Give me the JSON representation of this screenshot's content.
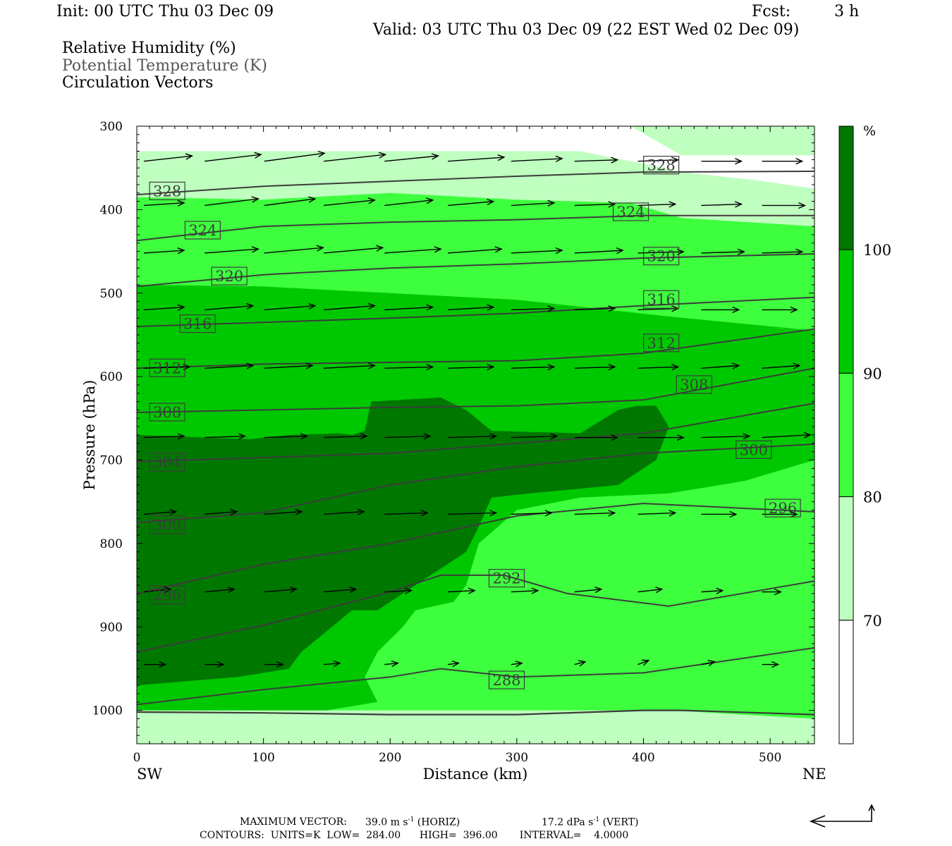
{
  "header": {
    "init": "Init: 00 UTC Thu 03 Dec 09",
    "fcst_label": "Fcst:",
    "fcst_value": "3 h",
    "valid": "Valid: 03 UTC Thu 03 Dec 09 (22 EST Wed 02 Dec 09)",
    "fields": [
      "Relative Humidity (%)",
      "Potential Temperature (K)",
      "Circulation Vectors"
    ]
  },
  "footer": {
    "max_vector_label": "MAXIMUM VECTOR:",
    "max_vector_horiz": "39.0 m s",
    "max_vector_horiz_unit": "(HORIZ)",
    "max_vector_vert": "17.2 dPa s",
    "max_vector_vert_unit": "(VERT)",
    "exponent": "-1",
    "contours": "CONTOURS:  UNITS=K  LOW=  284.00      HIGH=  396.00       INTERVAL=    4.0000"
  },
  "colors": {
    "rh_70": "#bfffbf",
    "rh_80": "#3dff3d",
    "rh_90": "#00c800",
    "rh_100": "#007800",
    "theta_line": "#3c3c3c",
    "vector": "#000000"
  },
  "chart_data": {
    "type": "cross-section",
    "xlabel": "Distance (km)",
    "ylabel": "Pressure (hPa)",
    "xlim": [
      0,
      535
    ],
    "ylim": [
      1040,
      300
    ],
    "x_ticks": [
      0,
      100,
      200,
      300,
      400,
      500
    ],
    "y_ticks": [
      300,
      400,
      500,
      600,
      700,
      800,
      900,
      1000
    ],
    "x_end_labels": {
      "left": "SW",
      "right": "NE"
    },
    "colorbar": {
      "unit": "%",
      "levels": [
        70,
        80,
        90,
        100
      ]
    },
    "rh_fields": [
      {
        "level": 70,
        "polygon": [
          [
            0,
            300
          ],
          [
            535,
            300
          ],
          [
            535,
            335
          ],
          [
            430,
            335
          ],
          [
            390,
            300
          ],
          [
            0,
            300
          ],
          [
            0,
            1040
          ],
          [
            535,
            1040
          ],
          [
            535,
            375
          ],
          [
            490,
            365
          ],
          [
            430,
            355
          ],
          [
            400,
            345
          ],
          [
            350,
            330
          ],
          [
            0,
            330
          ]
        ]
      },
      {
        "level": 80,
        "polygon": [
          [
            0,
            385
          ],
          [
            100,
            388
          ],
          [
            200,
            380
          ],
          [
            300,
            388
          ],
          [
            390,
            392
          ],
          [
            430,
            410
          ],
          [
            535,
            420
          ],
          [
            535,
            1010
          ],
          [
            420,
            1000
          ],
          [
            240,
            1000
          ],
          [
            0,
            1000
          ],
          [
            0,
            385
          ]
        ]
      },
      {
        "level": 90,
        "polygon": [
          [
            0,
            490
          ],
          [
            100,
            492
          ],
          [
            200,
            500
          ],
          [
            300,
            508
          ],
          [
            420,
            528
          ],
          [
            535,
            545
          ],
          [
            535,
            700
          ],
          [
            480,
            725
          ],
          [
            420,
            740
          ],
          [
            350,
            745
          ],
          [
            300,
            760
          ],
          [
            270,
            800
          ],
          [
            260,
            850
          ],
          [
            250,
            870
          ],
          [
            220,
            880
          ],
          [
            210,
            900
          ],
          [
            190,
            930
          ],
          [
            180,
            960
          ],
          [
            190,
            990
          ],
          [
            150,
            1000
          ],
          [
            0,
            1000
          ],
          [
            0,
            490
          ]
        ]
      },
      {
        "level": 100,
        "polygon": [
          [
            0,
            670
          ],
          [
            90,
            675
          ],
          [
            120,
            670
          ],
          [
            160,
            668
          ],
          [
            170,
            670
          ],
          [
            180,
            665
          ],
          [
            185,
            630
          ],
          [
            240,
            625
          ],
          [
            260,
            640
          ],
          [
            280,
            665
          ],
          [
            350,
            668
          ],
          [
            380,
            640
          ],
          [
            395,
            635
          ],
          [
            410,
            635
          ],
          [
            420,
            660
          ],
          [
            410,
            700
          ],
          [
            380,
            730
          ],
          [
            310,
            740
          ],
          [
            280,
            745
          ],
          [
            270,
            780
          ],
          [
            260,
            810
          ],
          [
            240,
            830
          ],
          [
            210,
            860
          ],
          [
            190,
            880
          ],
          [
            170,
            880
          ],
          [
            130,
            930
          ],
          [
            120,
            950
          ],
          [
            80,
            960
          ],
          [
            0,
            970
          ],
          [
            0,
            670
          ]
        ]
      }
    ],
    "theta_contours": [
      {
        "value": 328,
        "points": [
          [
            0,
            382
          ],
          [
            100,
            372
          ],
          [
            200,
            366
          ],
          [
            300,
            360
          ],
          [
            400,
            355
          ],
          [
            535,
            354
          ]
        ]
      },
      {
        "value": 324,
        "points": [
          [
            0,
            437
          ],
          [
            100,
            420
          ],
          [
            200,
            415
          ],
          [
            300,
            412
          ],
          [
            400,
            407
          ],
          [
            535,
            407
          ]
        ]
      },
      {
        "value": 320,
        "points": [
          [
            0,
            492
          ],
          [
            100,
            478
          ],
          [
            200,
            470
          ],
          [
            300,
            465
          ],
          [
            400,
            458
          ],
          [
            535,
            453
          ]
        ]
      },
      {
        "value": 316,
        "points": [
          [
            0,
            540
          ],
          [
            100,
            535
          ],
          [
            200,
            530
          ],
          [
            300,
            524
          ],
          [
            400,
            515
          ],
          [
            535,
            505
          ]
        ]
      },
      {
        "value": 312,
        "points": [
          [
            0,
            590
          ],
          [
            100,
            585
          ],
          [
            200,
            583
          ],
          [
            300,
            581
          ],
          [
            400,
            572
          ],
          [
            535,
            543
          ]
        ]
      },
      {
        "value": 308,
        "points": [
          [
            0,
            643
          ],
          [
            100,
            640
          ],
          [
            200,
            637
          ],
          [
            300,
            635
          ],
          [
            400,
            628
          ],
          [
            535,
            590
          ]
        ]
      },
      {
        "value": 304,
        "points": [
          [
            0,
            702
          ],
          [
            100,
            697
          ],
          [
            200,
            692
          ],
          [
            300,
            680
          ],
          [
            400,
            668
          ],
          [
            535,
            632
          ]
        ]
      },
      {
        "value": 300,
        "points": [
          [
            0,
            775
          ],
          [
            100,
            763
          ],
          [
            200,
            730
          ],
          [
            300,
            708
          ],
          [
            400,
            692
          ],
          [
            535,
            681
          ]
        ]
      },
      {
        "value": 296,
        "points": [
          [
            0,
            860
          ],
          [
            100,
            825
          ],
          [
            200,
            800
          ],
          [
            300,
            767
          ],
          [
            400,
            752
          ],
          [
            535,
            762
          ]
        ]
      },
      {
        "value": 292,
        "points": [
          [
            0,
            930
          ],
          [
            100,
            898
          ],
          [
            200,
            858
          ],
          [
            240,
            838
          ],
          [
            290,
            838
          ],
          [
            340,
            860
          ],
          [
            420,
            875
          ],
          [
            535,
            845
          ]
        ]
      },
      {
        "value": 288,
        "points": [
          [
            0,
            993
          ],
          [
            100,
            975
          ],
          [
            200,
            960
          ],
          [
            240,
            950
          ],
          [
            300,
            960
          ],
          [
            400,
            955
          ],
          [
            535,
            925
          ]
        ]
      },
      {
        "value": 284,
        "points": [
          [
            0,
            1002
          ],
          [
            100,
            1003
          ],
          [
            200,
            1005
          ],
          [
            300,
            1005
          ],
          [
            400,
            1000
          ],
          [
            430,
            1000
          ],
          [
            535,
            1005
          ]
        ]
      }
    ],
    "theta_labels": [
      {
        "text": "328",
        "x": 24,
        "p": 378
      },
      {
        "text": "328",
        "x": 414,
        "p": 347
      },
      {
        "text": "324",
        "x": 52,
        "p": 425
      },
      {
        "text": "324",
        "x": 390,
        "p": 403
      },
      {
        "text": "320",
        "x": 73,
        "p": 480
      },
      {
        "text": "320",
        "x": 414,
        "p": 456
      },
      {
        "text": "316",
        "x": 48,
        "p": 537
      },
      {
        "text": "316",
        "x": 414,
        "p": 508
      },
      {
        "text": "312",
        "x": 24,
        "p": 590
      },
      {
        "text": "312",
        "x": 414,
        "p": 560
      },
      {
        "text": "308",
        "x": 24,
        "p": 643
      },
      {
        "text": "308",
        "x": 440,
        "p": 610
      },
      {
        "text": "304",
        "x": 24,
        "p": 703
      },
      {
        "text": "300",
        "x": 24,
        "p": 778
      },
      {
        "text": "300",
        "x": 487,
        "p": 688
      },
      {
        "text": "296",
        "x": 24,
        "p": 862
      },
      {
        "text": "296",
        "x": 510,
        "p": 758
      },
      {
        "text": "292",
        "x": 292,
        "p": 842
      },
      {
        "text": "288",
        "x": 292,
        "p": 964
      }
    ],
    "vector_rows": [
      {
        "p": 342,
        "x": [
          0,
          48,
          95,
          142,
          190,
          240,
          290,
          340,
          390,
          440,
          488,
          535
        ],
        "u": [
          36,
          42,
          45,
          46,
          40,
          42,
          38,
          32,
          30,
          30,
          30,
          32
        ],
        "w": [
          -4,
          -5,
          -6,
          -5,
          -4,
          -3,
          -2,
          -1,
          -1,
          0,
          0,
          0
        ]
      },
      {
        "p": 395,
        "x": [
          0,
          48,
          95,
          142,
          190,
          240,
          290,
          340,
          390,
          440,
          488
        ],
        "u": [
          30,
          40,
          38,
          38,
          36,
          34,
          32,
          30,
          28,
          30,
          32
        ],
        "w": [
          -2,
          -5,
          -5,
          -4,
          -4,
          -3,
          -2,
          -1,
          -1,
          -1,
          0
        ]
      },
      {
        "p": 452,
        "x": [
          0,
          48,
          95,
          142,
          190,
          240,
          290,
          340,
          390,
          440,
          488
        ],
        "u": [
          30,
          40,
          44,
          44,
          42,
          40,
          38,
          36,
          34,
          32,
          30
        ],
        "w": [
          -2,
          -3,
          -4,
          -4,
          -3,
          -3,
          -2,
          -2,
          -1,
          -1,
          -1
        ]
      },
      {
        "p": 520,
        "x": [
          0,
          48,
          95,
          142,
          190,
          240,
          290,
          340,
          390,
          440,
          488
        ],
        "u": [
          30,
          36,
          38,
          38,
          36,
          34,
          32,
          30,
          30,
          28,
          26
        ],
        "w": [
          -2,
          -3,
          -3,
          -3,
          -2,
          -2,
          -1,
          -1,
          -1,
          0,
          0
        ]
      },
      {
        "p": 590,
        "x": [
          0,
          48,
          95,
          142,
          190,
          240,
          290,
          340,
          390,
          440,
          488
        ],
        "u": [
          34,
          36,
          36,
          38,
          36,
          34,
          32,
          30,
          30,
          28,
          28
        ],
        "w": [
          -1,
          -2,
          -2,
          -2,
          -1,
          -1,
          -1,
          -1,
          -1,
          -2,
          -2
        ]
      },
      {
        "p": 673,
        "x": [
          0,
          48,
          95,
          142,
          190,
          240,
          290,
          340,
          390,
          440,
          488
        ],
        "u": [
          30,
          30,
          32,
          32,
          34,
          36,
          34,
          32,
          34,
          36,
          36
        ],
        "w": [
          -1,
          -1,
          -1,
          -1,
          -1,
          -1,
          -1,
          0,
          0,
          -1,
          -2
        ]
      },
      {
        "p": 765,
        "x": [
          0,
          48,
          95,
          142,
          190,
          240,
          290,
          340,
          390,
          440,
          488
        ],
        "u": [
          24,
          24,
          28,
          30,
          32,
          36,
          30,
          30,
          28,
          26,
          26
        ],
        "w": [
          -2,
          -2,
          -2,
          -2,
          -1,
          -1,
          -1,
          -1,
          -1,
          0,
          0
        ]
      },
      {
        "p": 858,
        "x": [
          0,
          48,
          95,
          142,
          190,
          240,
          290,
          340,
          390,
          440,
          488
        ],
        "u": [
          20,
          22,
          24,
          24,
          20,
          20,
          20,
          20,
          18,
          16,
          14
        ],
        "w": [
          -2,
          -2,
          -2,
          -2,
          -1,
          -1,
          -1,
          -2,
          -2,
          -1,
          0
        ]
      },
      {
        "p": 945,
        "x": [
          0,
          48,
          95,
          142,
          190,
          240,
          290,
          340,
          390,
          440,
          488
        ],
        "u": [
          16,
          14,
          14,
          12,
          10,
          8,
          8,
          8,
          8,
          10,
          12
        ],
        "w": [
          0,
          0,
          0,
          -1,
          -1,
          -1,
          -1,
          -2,
          -3,
          -2,
          0
        ]
      }
    ]
  }
}
